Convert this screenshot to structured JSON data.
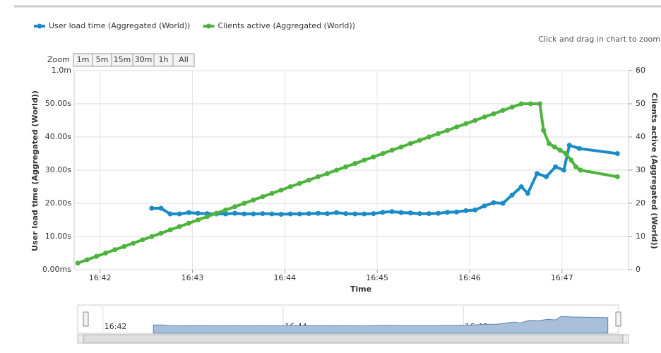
{
  "chart_data": {
    "type": "line",
    "legend": "top-left",
    "grid": true,
    "subtitle": "Click and drag in chart to zoom",
    "zoom_label": "Zoom",
    "zoom_buttons": [
      "1m",
      "5m",
      "15m",
      "30m",
      "1h",
      "All"
    ],
    "x_label": "Time",
    "y_label": "User load time (Aggregated (World))",
    "y2_label": "Clients active (Aggregated (World))",
    "xlim": [
      41.72,
      47.72
    ],
    "xticks": [
      {
        "value": 42,
        "label": "16:42"
      },
      {
        "value": 43,
        "label": "16:43"
      },
      {
        "value": 44,
        "label": "16:44"
      },
      {
        "value": 45,
        "label": "16:45"
      },
      {
        "value": 46,
        "label": "16:46"
      },
      {
        "value": 47,
        "label": "16:47"
      }
    ],
    "ylim": [
      0,
      60
    ],
    "yticks": [
      {
        "value": 0,
        "label": "0.00ms"
      },
      {
        "value": 10,
        "label": "10.00s"
      },
      {
        "value": 20,
        "label": "20.00s"
      },
      {
        "value": 30,
        "label": "30.00s"
      },
      {
        "value": 40,
        "label": "40.00s"
      },
      {
        "value": 50,
        "label": "50.00s"
      },
      {
        "value": 60,
        "label": "1.0m"
      }
    ],
    "y2lim": [
      0,
      60
    ],
    "y2ticks": [
      0,
      10,
      20,
      30,
      40,
      50,
      60
    ],
    "navigator_xticks": [
      {
        "value": 42,
        "label": "16:42"
      },
      {
        "value": 44,
        "label": "16:44"
      },
      {
        "value": 46,
        "label": "16:46"
      }
    ],
    "series": [
      {
        "name": "User load time (Aggregated (World))",
        "color": "#1a8bc6",
        "axis": "y",
        "x": [
          42.56,
          42.66,
          42.76,
          42.86,
          42.96,
          43.06,
          43.16,
          43.26,
          43.36,
          43.46,
          43.56,
          43.66,
          43.76,
          43.86,
          43.96,
          44.06,
          44.16,
          44.26,
          44.36,
          44.46,
          44.56,
          44.66,
          44.76,
          44.86,
          44.96,
          45.06,
          45.16,
          45.26,
          45.36,
          45.46,
          45.56,
          45.66,
          45.76,
          45.86,
          45.96,
          46.06,
          46.16,
          46.26,
          46.36,
          46.46,
          46.56,
          46.63,
          46.73,
          46.83,
          46.93,
          47.02,
          47.08,
          47.19,
          47.6
        ],
        "values": [
          18.5,
          18.5,
          16.8,
          16.8,
          17.2,
          17,
          16.9,
          16.8,
          16.8,
          17,
          16.8,
          16.8,
          16.9,
          16.8,
          16.7,
          16.8,
          16.8,
          16.9,
          17,
          16.9,
          17.2,
          16.9,
          16.8,
          16.8,
          16.9,
          17.3,
          17.5,
          17.2,
          17.1,
          16.9,
          16.9,
          17,
          17.3,
          17.4,
          17.8,
          18,
          19.2,
          20.2,
          20,
          22.5,
          25,
          23,
          29,
          28,
          31,
          30,
          37.5,
          36.5,
          35
        ]
      },
      {
        "name": "Clients active (Aggregated (World))",
        "color": "#4cb43c",
        "axis": "y2",
        "x": [
          41.76,
          41.86,
          41.96,
          42.06,
          42.16,
          42.26,
          42.36,
          42.46,
          42.56,
          42.66,
          42.76,
          42.86,
          42.96,
          43.06,
          43.16,
          43.26,
          43.36,
          43.46,
          43.56,
          43.66,
          43.76,
          43.86,
          43.96,
          44.06,
          44.16,
          44.26,
          44.36,
          44.46,
          44.56,
          44.66,
          44.76,
          44.86,
          44.96,
          45.06,
          45.16,
          45.26,
          45.36,
          45.46,
          45.56,
          45.66,
          45.76,
          45.86,
          45.96,
          46.06,
          46.16,
          46.26,
          46.36,
          46.46,
          46.56,
          46.66,
          46.76,
          46.8,
          46.86,
          46.92,
          46.98,
          47.04,
          47.1,
          47.15,
          47.2,
          47.6
        ],
        "values": [
          2,
          3,
          4,
          5,
          6,
          7,
          8,
          9,
          10,
          11,
          12,
          13,
          14,
          15,
          16,
          17,
          18,
          19,
          20,
          21,
          22,
          23,
          24,
          25,
          26,
          27,
          28,
          29,
          30,
          31,
          32,
          33,
          34,
          35,
          36,
          37,
          38,
          39,
          40,
          41,
          42,
          43,
          44,
          45,
          46,
          47,
          48,
          49,
          50,
          50,
          50,
          42,
          38,
          37,
          36,
          35,
          33,
          31,
          30,
          28
        ]
      }
    ]
  }
}
